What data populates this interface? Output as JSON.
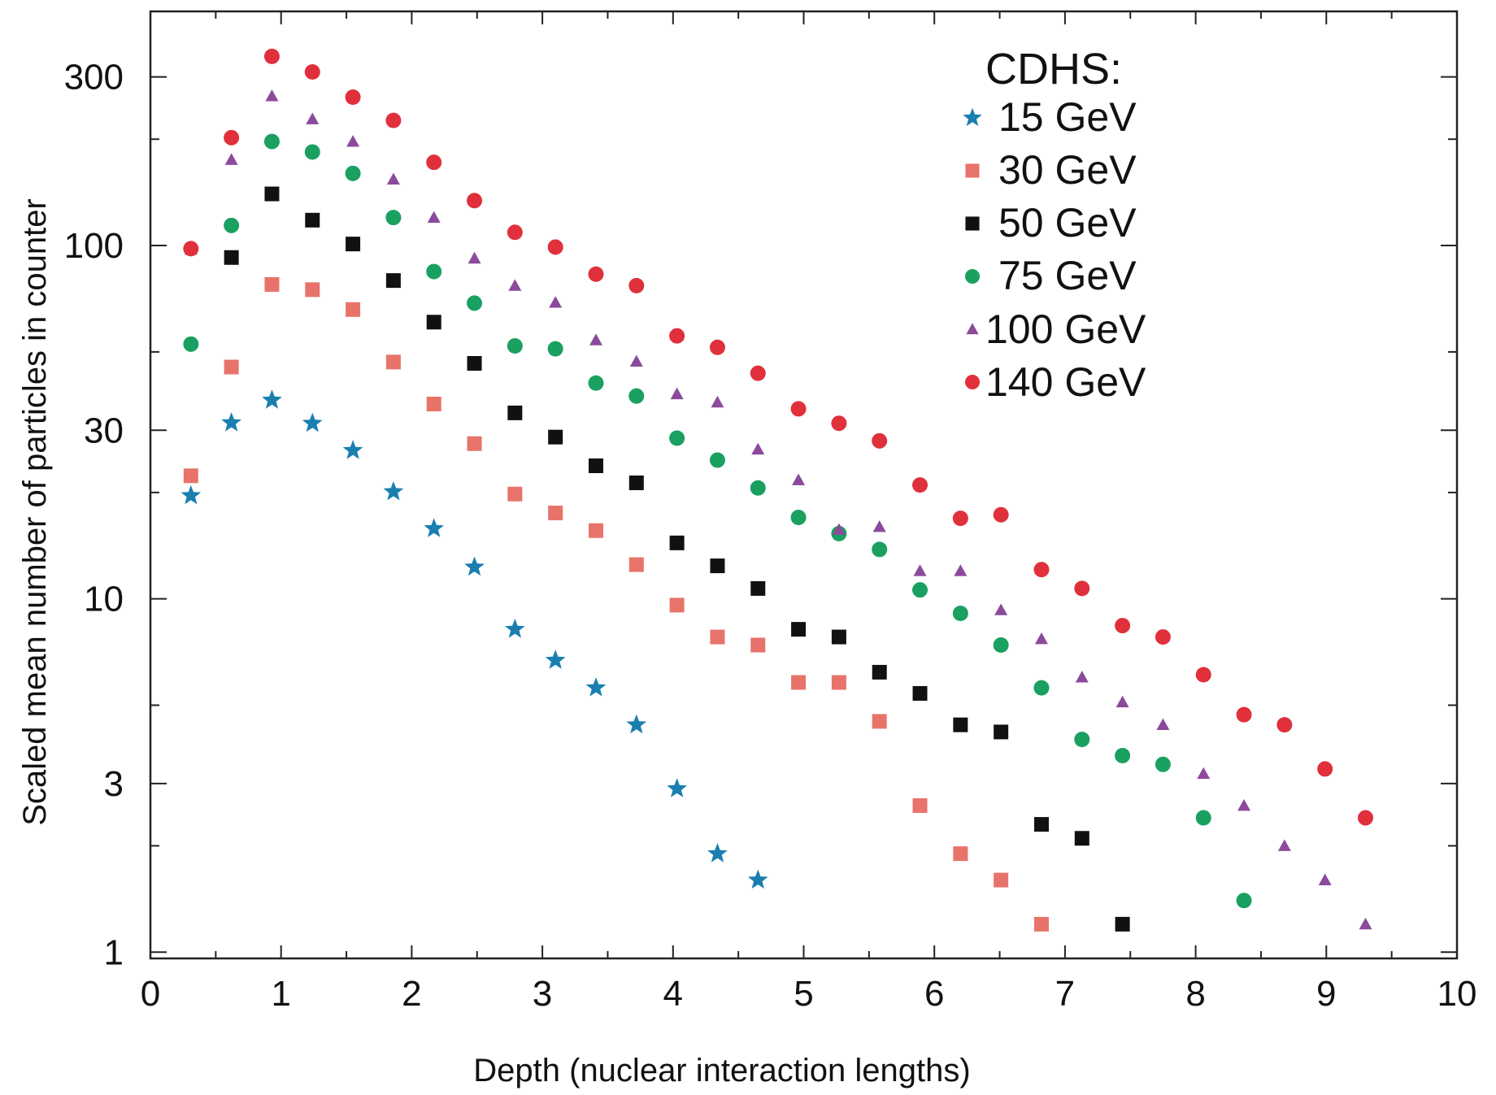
{
  "chart_data": {
    "type": "scatter",
    "title": "",
    "xlabel": "Depth (nuclear interaction lengths)",
    "ylabel": "Scaled mean number of particles in counter",
    "xlim": [
      0,
      10
    ],
    "ylim": [
      0.96,
      460
    ],
    "yscale": "log",
    "grid": false,
    "legend_title": "CDHS:",
    "legend_position": "top-right",
    "x_ticks": [
      "0",
      "1",
      "2",
      "3",
      "4",
      "5",
      "6",
      "7",
      "8",
      "9",
      "10"
    ],
    "y_ticks": [
      "1",
      "3",
      "10",
      "30",
      "100",
      "300"
    ],
    "series": [
      {
        "name": "15 GeV",
        "color": "#1a7fb0",
        "marker": "star",
        "x": [
          0.31,
          0.62,
          0.93,
          1.24,
          1.55,
          1.86,
          2.17,
          2.48,
          2.79,
          3.1,
          3.41,
          3.72,
          4.03,
          4.34,
          4.65
        ],
        "y": [
          19.6,
          31.5,
          36.5,
          31.4,
          26.3,
          20.1,
          15.8,
          12.3,
          8.2,
          6.7,
          5.6,
          4.4,
          2.9,
          1.9,
          1.6
        ]
      },
      {
        "name": "30 GeV",
        "color": "#e8736a",
        "marker": "square",
        "x": [
          0.31,
          0.62,
          0.93,
          1.24,
          1.55,
          1.86,
          2.17,
          2.48,
          2.79,
          3.1,
          3.41,
          3.72,
          4.03,
          4.34,
          4.65,
          4.96,
          5.27,
          5.58,
          5.89,
          6.2,
          6.51,
          6.82
        ],
        "y": [
          22.3,
          45.3,
          77.6,
          75.0,
          65.9,
          46.8,
          35.6,
          27.5,
          19.8,
          17.5,
          15.6,
          12.5,
          9.6,
          7.8,
          7.4,
          5.8,
          5.8,
          4.5,
          2.6,
          1.9,
          1.6,
          1.2
        ]
      },
      {
        "name": "50 GeV",
        "color": "#111111",
        "marker": "square",
        "x": [
          0.62,
          0.93,
          1.24,
          1.55,
          1.86,
          2.17,
          2.48,
          2.79,
          3.1,
          3.41,
          3.72,
          4.03,
          4.34,
          4.65,
          4.96,
          5.27,
          5.58,
          5.89,
          6.2,
          6.51,
          6.82,
          7.13,
          7.44
        ],
        "y": [
          92.5,
          140,
          118,
          101,
          79.6,
          60.7,
          46.4,
          33.6,
          28.7,
          23.8,
          21.3,
          14.4,
          12.4,
          10.7,
          8.2,
          7.8,
          6.2,
          5.4,
          4.4,
          4.2,
          2.3,
          2.1,
          1.2
        ]
      },
      {
        "name": "75 GeV",
        "color": "#1aa060",
        "marker": "circle",
        "x": [
          0.31,
          0.62,
          0.93,
          1.24,
          1.55,
          1.86,
          2.17,
          2.48,
          2.79,
          3.1,
          3.41,
          3.72,
          4.03,
          4.34,
          4.65,
          4.96,
          5.27,
          5.58,
          5.89,
          6.2,
          6.51,
          6.82,
          7.13,
          7.44,
          7.75,
          8.06,
          8.37
        ],
        "y": [
          52.6,
          114,
          197,
          184,
          160,
          120,
          84.4,
          68.7,
          52.0,
          51.0,
          40.8,
          37.5,
          28.5,
          24.7,
          20.6,
          17.0,
          15.3,
          13.8,
          10.6,
          9.1,
          7.4,
          5.6,
          4.0,
          3.6,
          3.4,
          2.4,
          1.4
        ]
      },
      {
        "name": "100 GeV",
        "color": "#8b4a9c",
        "marker": "triangle",
        "x": [
          0.31,
          0.62,
          0.93,
          1.24,
          1.55,
          1.86,
          2.17,
          2.48,
          2.79,
          3.1,
          3.41,
          3.72,
          4.03,
          4.34,
          4.65,
          4.96,
          5.27,
          5.58,
          5.89,
          6.2,
          6.51,
          6.82,
          7.13,
          7.44,
          7.75,
          8.06,
          8.37,
          8.68,
          8.99,
          9.3
        ],
        "y": [
          97.5,
          175,
          265,
          228,
          197,
          154,
          120,
          92,
          77,
          69,
          54,
          47,
          38,
          36,
          26.5,
          21.7,
          15.7,
          16.0,
          12.0,
          12.0,
          9.3,
          7.7,
          6.0,
          5.1,
          4.4,
          3.2,
          2.6,
          2.0,
          1.6,
          1.2
        ]
      },
      {
        "name": "140 GeV",
        "color": "#e0303c",
        "marker": "circle",
        "x": [
          0.31,
          0.62,
          0.93,
          1.24,
          1.55,
          1.86,
          2.17,
          2.48,
          2.79,
          3.1,
          3.41,
          3.72,
          4.03,
          4.34,
          4.65,
          4.96,
          5.27,
          5.58,
          5.89,
          6.2,
          6.51,
          6.82,
          7.13,
          7.44,
          7.75,
          8.06,
          8.37,
          8.68,
          8.99,
          9.3
        ],
        "y": [
          98.0,
          202,
          343,
          310,
          263,
          226,
          172,
          134,
          109,
          99,
          83,
          77,
          55.5,
          51.5,
          43.5,
          34.5,
          31.4,
          28.0,
          21.0,
          16.9,
          17.3,
          12.1,
          10.7,
          8.4,
          7.8,
          6.1,
          4.7,
          4.4,
          3.3,
          2.4
        ]
      }
    ]
  }
}
